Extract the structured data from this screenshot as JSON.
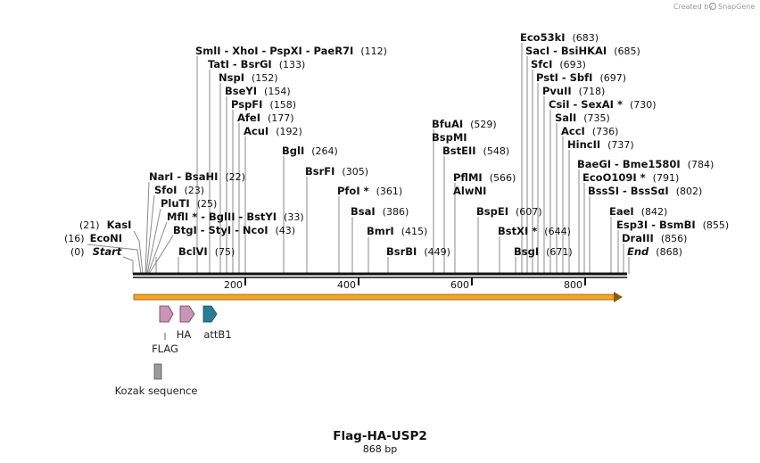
{
  "credit": {
    "text": "Created by",
    "brand": "SnapGene"
  },
  "title": "Flag-HA-USP2",
  "length_label": "868 bp",
  "ruler": {
    "ticks": [
      "200",
      "400",
      "600",
      "800"
    ]
  },
  "sites": [
    {
      "name": "SmlI  -  XhoI  -  PspXI  -  PaeR7I",
      "pos": "(112)"
    },
    {
      "name": "TatI  -  BsrGI",
      "pos": "(133)"
    },
    {
      "name": "NspI",
      "pos": "(152)"
    },
    {
      "name": "BseYI",
      "pos": "(154)"
    },
    {
      "name": "PspFI",
      "pos": "(158)"
    },
    {
      "name": "AfeI",
      "pos": "(177)"
    },
    {
      "name": "AcuI",
      "pos": "(192)"
    },
    {
      "name": "BglI",
      "pos": "(264)"
    },
    {
      "name": "BsrFI",
      "pos": "(305)"
    },
    {
      "name": "PfoI *",
      "pos": "(361)"
    },
    {
      "name": "BsaI",
      "pos": "(386)"
    },
    {
      "name": "BmrI",
      "pos": "(415)"
    },
    {
      "name": "BsrBI",
      "pos": "(449)"
    },
    {
      "name": "NarI  -  BsaHI",
      "pos": "(22)"
    },
    {
      "name": "SfoI",
      "pos": "(23)"
    },
    {
      "name": "PluTI",
      "pos": "(25)"
    },
    {
      "name": "MflI *  -  BglII  -  BstYI",
      "pos": "(33)"
    },
    {
      "name": "BtgI  -  StyI  -  NcoI",
      "pos": "(43)"
    },
    {
      "name": "BclVI",
      "pos": "(75)"
    },
    {
      "name": "KasI",
      "pos": "(21)"
    },
    {
      "name": "EcoNI",
      "pos": "(16)"
    },
    {
      "name": "Start",
      "pos": "(0)"
    },
    {
      "name": "BfuAI",
      "pos": "(529)"
    },
    {
      "name": "BspMI",
      "pos": ""
    },
    {
      "name": "BstEII",
      "pos": "(548)"
    },
    {
      "name": "PflMI",
      "pos": "(566)"
    },
    {
      "name": "AlwNI",
      "pos": ""
    },
    {
      "name": "BspEI",
      "pos": "(607)"
    },
    {
      "name": "BstXI *",
      "pos": "(644)"
    },
    {
      "name": "BsgI",
      "pos": "(671)"
    },
    {
      "name": "Eco53kI",
      "pos": "(683)"
    },
    {
      "name": "SacI  -  BsiHKAI",
      "pos": "(685)"
    },
    {
      "name": "SfcI",
      "pos": "(693)"
    },
    {
      "name": "PstI  -  SbfI",
      "pos": "(697)"
    },
    {
      "name": "PvuII",
      "pos": "(718)"
    },
    {
      "name": "CsiI  -  SexAI *",
      "pos": "(730)"
    },
    {
      "name": "SalI",
      "pos": "(735)"
    },
    {
      "name": "AccI",
      "pos": "(736)"
    },
    {
      "name": "HincII",
      "pos": "(737)"
    },
    {
      "name": "BaeGI  -  Bme1580I",
      "pos": "(784)"
    },
    {
      "name": "EcoO109I *",
      "pos": "(791)"
    },
    {
      "name": "BssSI  -  BssSαI",
      "pos": "(802)"
    },
    {
      "name": "EaeI",
      "pos": "(842)"
    },
    {
      "name": "Esp3I  -  BsmBI",
      "pos": "(855)"
    },
    {
      "name": "DraIII",
      "pos": "(856)"
    },
    {
      "name": "End",
      "pos": "(868)"
    }
  ],
  "features": [
    {
      "label": "FLAG",
      "color": "#c994b5"
    },
    {
      "label": "HA",
      "color": "#c994b5"
    },
    {
      "label": "attB1",
      "color": "#2a7d96"
    },
    {
      "label": "Kozak sequence",
      "color": "#9a9a9a"
    }
  ],
  "colors": {
    "orf": "#f5a623",
    "backbone": "#111111",
    "leader": "#8a8a8a"
  }
}
